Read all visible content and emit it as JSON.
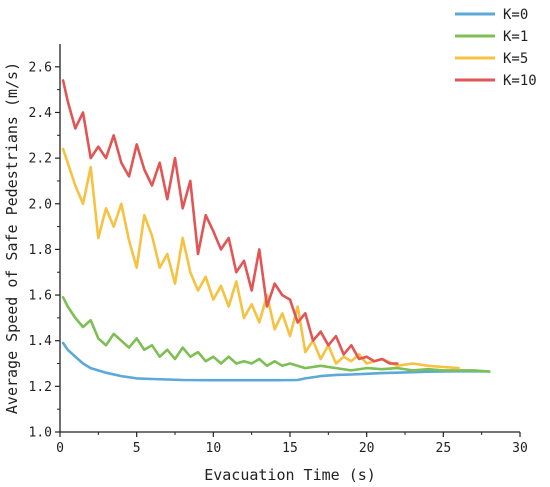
{
  "chart_data": {
    "type": "line",
    "title": "",
    "xlabel": "Evacuation Time (s)",
    "ylabel": "Average Speed of Safe Pedestrians (m/s)",
    "xlim": [
      0,
      30
    ],
    "ylim": [
      1.0,
      2.7
    ],
    "xticks": [
      0,
      5,
      10,
      15,
      20,
      25,
      30
    ],
    "yticks": [
      1.0,
      1.2,
      1.4,
      1.6,
      1.8,
      2.0,
      2.2,
      2.4,
      2.6
    ],
    "xtick_labels": [
      "0",
      "5",
      "10",
      "15",
      "20",
      "25",
      "30"
    ],
    "ytick_labels": [
      "1.0",
      "1.2",
      "1.4",
      "1.6",
      "1.8",
      "2.0",
      "2.2",
      "2.4",
      "2.6"
    ],
    "grid": false,
    "legend_position": "top-right",
    "series": [
      {
        "name": "K=0",
        "color": "#5aa9d8",
        "x": [
          0.2,
          0.5,
          1,
          1.5,
          2,
          3,
          4,
          5,
          6,
          8,
          10,
          12,
          14,
          15.5,
          16,
          17,
          18,
          19,
          20,
          21,
          22,
          23,
          24,
          25,
          26,
          27,
          28
        ],
        "y": [
          1.39,
          1.36,
          1.33,
          1.3,
          1.28,
          1.26,
          1.245,
          1.235,
          1.232,
          1.228,
          1.227,
          1.227,
          1.227,
          1.228,
          1.235,
          1.245,
          1.25,
          1.252,
          1.255,
          1.258,
          1.26,
          1.262,
          1.264,
          1.265,
          1.266,
          1.266,
          1.265
        ]
      },
      {
        "name": "K=1",
        "color": "#7dbf52",
        "x": [
          0.2,
          0.5,
          1,
          1.5,
          2,
          2.5,
          3,
          3.5,
          4,
          4.5,
          5,
          5.5,
          6,
          6.5,
          7,
          7.5,
          8,
          8.5,
          9,
          9.5,
          10,
          10.5,
          11,
          11.5,
          12,
          12.5,
          13,
          13.5,
          14,
          14.5,
          15,
          16,
          17,
          18,
          19,
          20,
          21,
          22,
          23,
          24,
          25,
          26,
          27,
          28
        ],
        "y": [
          1.59,
          1.55,
          1.5,
          1.46,
          1.49,
          1.41,
          1.38,
          1.43,
          1.4,
          1.37,
          1.41,
          1.36,
          1.38,
          1.33,
          1.36,
          1.32,
          1.37,
          1.33,
          1.35,
          1.31,
          1.33,
          1.3,
          1.33,
          1.3,
          1.31,
          1.3,
          1.32,
          1.29,
          1.31,
          1.29,
          1.3,
          1.28,
          1.29,
          1.28,
          1.27,
          1.28,
          1.275,
          1.28,
          1.27,
          1.275,
          1.27,
          1.27,
          1.27,
          1.265
        ]
      },
      {
        "name": "K=5",
        "color": "#f5c242",
        "x": [
          0.2,
          0.5,
          1,
          1.5,
          2,
          2.5,
          3,
          3.5,
          4,
          4.5,
          5,
          5.5,
          6,
          6.5,
          7,
          7.5,
          8,
          8.5,
          9,
          9.5,
          10,
          10.5,
          11,
          11.5,
          12,
          12.5,
          13,
          13.5,
          14,
          14.5,
          15,
          15.5,
          16,
          16.5,
          17,
          17.5,
          18,
          18.5,
          19,
          19.5,
          20,
          21,
          22,
          23,
          24,
          25,
          26
        ],
        "y": [
          2.24,
          2.18,
          2.08,
          2.0,
          2.16,
          1.85,
          1.98,
          1.9,
          2.0,
          1.84,
          1.72,
          1.95,
          1.86,
          1.72,
          1.78,
          1.65,
          1.85,
          1.7,
          1.62,
          1.68,
          1.58,
          1.64,
          1.55,
          1.66,
          1.5,
          1.56,
          1.48,
          1.6,
          1.45,
          1.52,
          1.42,
          1.55,
          1.35,
          1.4,
          1.32,
          1.38,
          1.3,
          1.33,
          1.31,
          1.34,
          1.3,
          1.32,
          1.29,
          1.3,
          1.29,
          1.285,
          1.28
        ]
      },
      {
        "name": "K=10",
        "color": "#e25555",
        "x": [
          0.2,
          0.5,
          1,
          1.5,
          2,
          2.5,
          3,
          3.5,
          4,
          4.5,
          5,
          5.5,
          6,
          6.5,
          7,
          7.5,
          8,
          8.5,
          9,
          9.5,
          10,
          10.5,
          11,
          11.5,
          12,
          12.5,
          13,
          13.5,
          14,
          14.5,
          15,
          15.5,
          16,
          16.5,
          17,
          17.5,
          18,
          18.5,
          19,
          19.5,
          20,
          20.5,
          21,
          21.5,
          22
        ],
        "y": [
          2.54,
          2.45,
          2.33,
          2.4,
          2.2,
          2.25,
          2.2,
          2.3,
          2.18,
          2.12,
          2.26,
          2.15,
          2.08,
          2.18,
          2.02,
          2.2,
          1.98,
          2.1,
          1.78,
          1.95,
          1.88,
          1.8,
          1.85,
          1.7,
          1.75,
          1.62,
          1.8,
          1.55,
          1.65,
          1.6,
          1.58,
          1.48,
          1.52,
          1.4,
          1.44,
          1.38,
          1.42,
          1.34,
          1.38,
          1.32,
          1.33,
          1.31,
          1.32,
          1.3,
          1.3
        ]
      }
    ]
  }
}
